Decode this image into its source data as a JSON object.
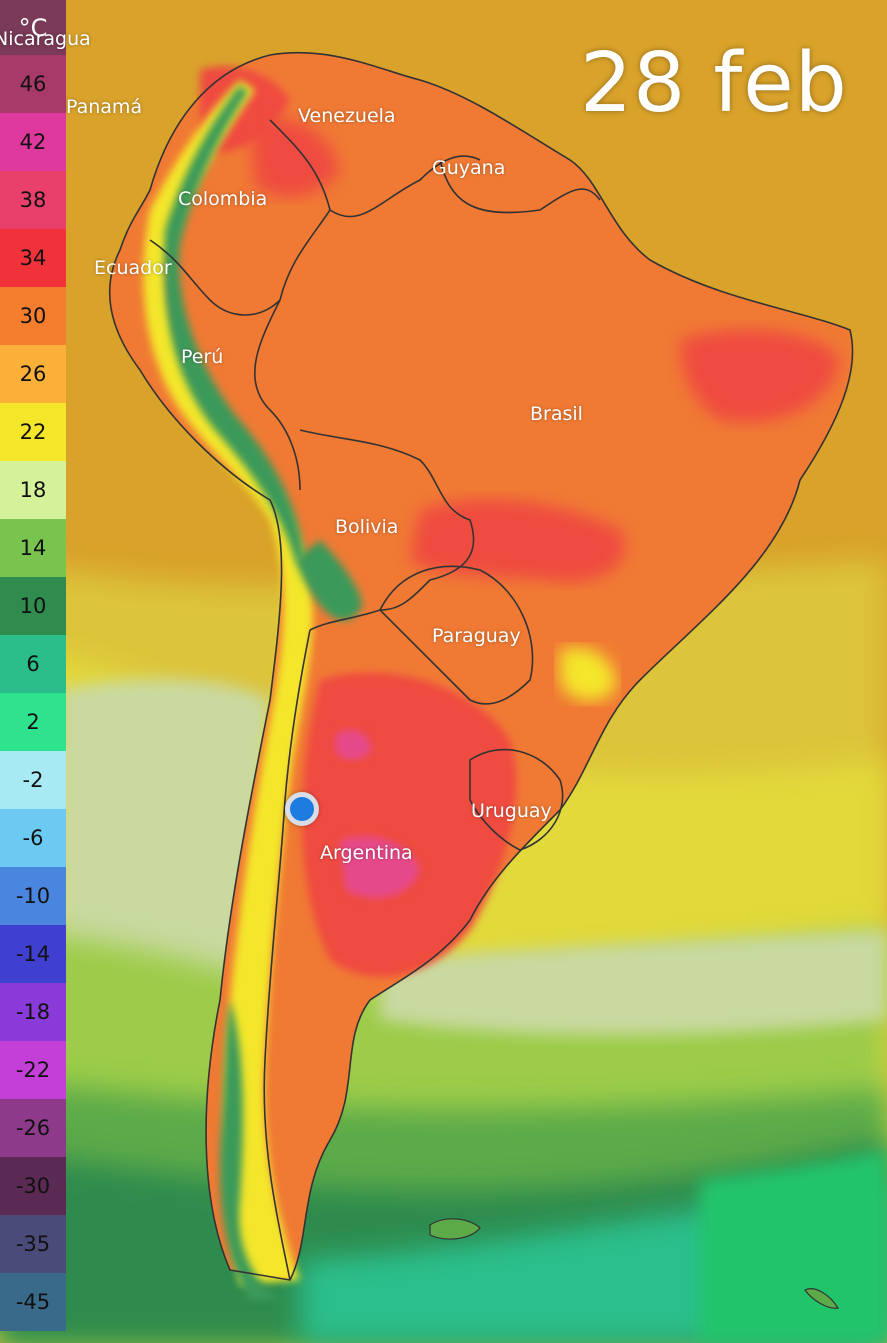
{
  "date_label": "28 feb",
  "legend": {
    "unit": "°C",
    "ticks": [
      {
        "label": "46",
        "color": "#a83a6a"
      },
      {
        "label": "42",
        "color": "#e0399e"
      },
      {
        "label": "38",
        "color": "#e8406a"
      },
      {
        "label": "34",
        "color": "#f1323a"
      },
      {
        "label": "30",
        "color": "#f57d2e"
      },
      {
        "label": "26",
        "color": "#fbb03a"
      },
      {
        "label": "22",
        "color": "#f4e629"
      },
      {
        "label": "18",
        "color": "#d4f29a"
      },
      {
        "label": "14",
        "color": "#78c44f"
      },
      {
        "label": "10",
        "color": "#2f8b4e"
      },
      {
        "label": "6",
        "color": "#2bbd8a"
      },
      {
        "label": "2",
        "color": "#2ee28e"
      },
      {
        "label": "-2",
        "color": "#a8eaf3"
      },
      {
        "label": "-6",
        "color": "#6cc9f2"
      },
      {
        "label": "-10",
        "color": "#4a86e0"
      },
      {
        "label": "-14",
        "color": "#3f3fd0"
      },
      {
        "label": "-18",
        "color": "#8a3ad8"
      },
      {
        "label": "-22",
        "color": "#c33fd8"
      },
      {
        "label": "-26",
        "color": "#8e3a8a"
      },
      {
        "label": "-30",
        "color": "#5a2a55"
      },
      {
        "label": "-35",
        "color": "#4b4b7a"
      },
      {
        "label": "-45",
        "color": "#3a6a8a"
      }
    ]
  },
  "countries": [
    {
      "name": "Nicaragua",
      "label": "Nicaragua"
    },
    {
      "name": "Panama",
      "label": "Panamá"
    },
    {
      "name": "Venezuela",
      "label": "Venezuela"
    },
    {
      "name": "Guyana",
      "label": "Guyana"
    },
    {
      "name": "Colombia",
      "label": "Colombia"
    },
    {
      "name": "Ecuador",
      "label": "Ecuador"
    },
    {
      "name": "Peru",
      "label": "Perú"
    },
    {
      "name": "Brasil",
      "label": "Brasil"
    },
    {
      "name": "Bolivia",
      "label": "Bolivia"
    },
    {
      "name": "Paraguay",
      "label": "Paraguay"
    },
    {
      "name": "Uruguay",
      "label": "Uruguay"
    },
    {
      "name": "Argentina",
      "label": "Argentina"
    }
  ],
  "colors": {
    "ocean_warm": "#d9a22a",
    "ocean_mid": "#e0d43a",
    "ocean_pale": "#c9d9a0",
    "ocean_green": "#7fc24a",
    "ocean_dark_green": "#2f8b4e",
    "ocean_teal": "#2cbf8c",
    "land_hot": "#f07a34",
    "land_very_hot": "#ef4c3f",
    "land_extreme": "#e64a8a",
    "andes_cool": "#3a9a5a",
    "andes_warm": "#f4e629",
    "location_dot": "#1e7be0"
  }
}
